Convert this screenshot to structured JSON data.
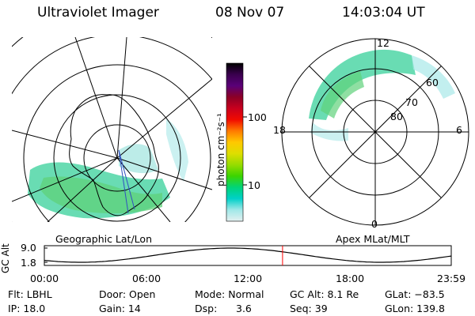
{
  "header": {
    "instrument": "Ultraviolet Imager",
    "date": "08 Nov 07",
    "time": "14:03:04 UT"
  },
  "left_map": {
    "label": "Geographic Lat/Lon"
  },
  "right_map": {
    "label": "Apex MLat/MLT",
    "mlt_labels": [
      "12",
      "18",
      "6",
      "0"
    ],
    "lat_labels": [
      "60",
      "70",
      "80"
    ]
  },
  "colorbar": {
    "title": "photon cm⁻²s⁻¹",
    "ticks": [
      "100",
      "10"
    ],
    "colors": [
      "#000000",
      "#3a004e",
      "#5a0078",
      "#8b0026",
      "#c8001e",
      "#f10b00",
      "#ff7a00",
      "#ffc800",
      "#dede00",
      "#97dc00",
      "#3cd400",
      "#00d478",
      "#00d0c8",
      "#a0e8e8",
      "#e4f0f0"
    ]
  },
  "gc_alt_plot": {
    "ylabel": "GC Alt",
    "y_ticks": [
      "9.0",
      "1.8"
    ],
    "x_ticks": [
      "00:00",
      "06:00",
      "12:00",
      "18:00",
      "23:59"
    ],
    "marker_time_hours": 14.05,
    "curve_color": "#000000",
    "marker_color": "#ff0000"
  },
  "info": {
    "flt": "Flt: LBHL",
    "ip": "IP: 18.0",
    "door": "Door: Open",
    "gain": "Gain: 14",
    "mode": "Mode: Normal",
    "dsp_label": "Dsp:",
    "dsp_value": "3.6",
    "gc_alt": "GC Alt: 8.1 Re",
    "seq": "Seq: 39",
    "glat": "GLat: −83.5",
    "glon": "GLon: 139.8"
  }
}
